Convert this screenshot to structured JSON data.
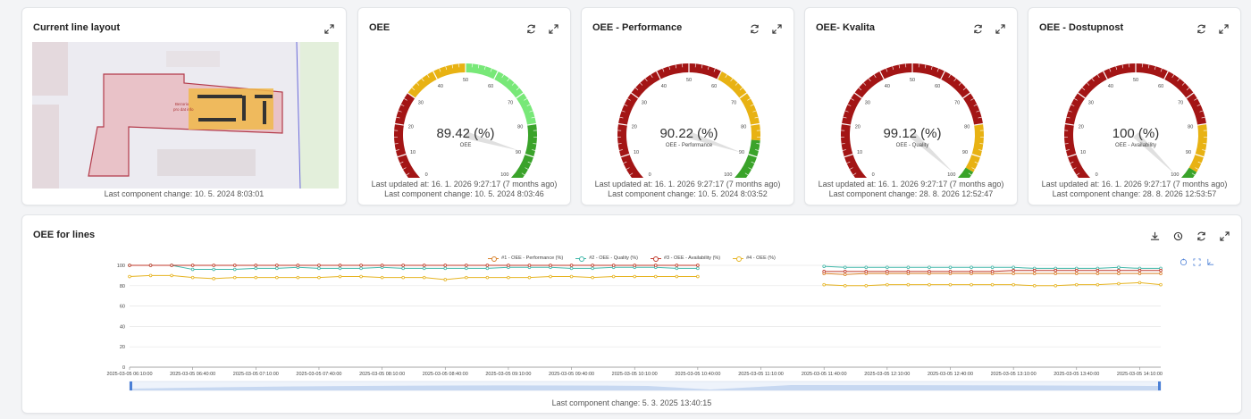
{
  "layout_card": {
    "title": "Current line layout",
    "footer": "Last component change: 10. 5. 2024 8:03:01",
    "map_label_line1": "Bezorio",
    "map_label_line2": "pro dat info",
    "icons": [
      "expand-icon"
    ]
  },
  "gauges": [
    {
      "title": "OEE",
      "value": 89.42,
      "value_text": "89.42 (%)",
      "name": "OEE",
      "updated": "Last updated at: 16. 1. 2026 9:27:17 (7 months ago)",
      "component_change": "Last component change: 10. 5. 2024 8:03:46",
      "bands": [
        {
          "to": 30,
          "color": "#a31515"
        },
        {
          "to": 50,
          "color": "#e8b213"
        },
        {
          "to": 80,
          "color": "#78e878"
        },
        {
          "to": 100,
          "color": "#3aa32a"
        }
      ]
    },
    {
      "title": "OEE - Performance",
      "value": 90.22,
      "value_text": "90.22 (%)",
      "name": "OEE - Performance",
      "updated": "Last updated at: 16. 1. 2026 9:27:17 (7 months ago)",
      "component_change": "Last component change: 10. 5. 2024 8:03:52",
      "bands": [
        {
          "to": 60,
          "color": "#a31515"
        },
        {
          "to": 85,
          "color": "#e8b213"
        },
        {
          "to": 100,
          "color": "#3aa32a"
        }
      ]
    },
    {
      "title": "OEE- Kvalita",
      "value": 99.12,
      "value_text": "99.12 (%)",
      "name": "OEE - Quality",
      "updated": "Last updated at: 16. 1. 2026 9:27:17 (7 months ago)",
      "component_change": "Last component change: 28. 8. 2026 12:52:47",
      "bands": [
        {
          "to": 80,
          "color": "#a31515"
        },
        {
          "to": 95,
          "color": "#e8b213"
        },
        {
          "to": 100,
          "color": "#3aa32a"
        }
      ]
    },
    {
      "title": "OEE - Dostupnost",
      "value": 100,
      "value_text": "100 (%)",
      "name": "OEE - Availability",
      "updated": "Last updated at: 16. 1. 2026 9:27:17 (7 months ago)",
      "component_change": "Last component change: 28. 8. 2026 12:53:57",
      "bands": [
        {
          "to": 80,
          "color": "#a31515"
        },
        {
          "to": 95,
          "color": "#e8b213"
        },
        {
          "to": 100,
          "color": "#3aa32a"
        }
      ]
    }
  ],
  "gauge_ticks": [
    "0",
    "10",
    "20",
    "30",
    "40",
    "50",
    "60",
    "70",
    "80",
    "90",
    "100"
  ],
  "gauge_icons": [
    "refresh-icon",
    "expand-icon"
  ],
  "lines_card": {
    "title": "OEE for lines",
    "footer": "Last component change: 5. 3. 2025 13:40:15",
    "icons": [
      "download-icon",
      "history-icon",
      "refresh-icon",
      "expand-icon"
    ],
    "chart_icons": [
      "restore-icon",
      "zoom-icon",
      "zoom-back-icon"
    ]
  },
  "chart_data": {
    "type": "line",
    "ylim": [
      0,
      100
    ],
    "yticks": [
      0,
      20,
      40,
      60,
      80,
      100
    ],
    "grid": true,
    "legend_position": "top-center",
    "x": [
      "2025-03-05 06:10:00",
      "2025-03-05 06:20:00",
      "2025-03-05 06:30:00",
      "2025-03-05 06:40:00",
      "2025-03-05 06:50:00",
      "2025-03-05 07:00:00",
      "2025-03-05 07:10:00",
      "2025-03-05 07:20:00",
      "2025-03-05 07:30:00",
      "2025-03-05 07:40:00",
      "2025-03-05 07:50:00",
      "2025-03-05 08:00:00",
      "2025-03-05 08:10:00",
      "2025-03-05 08:20:00",
      "2025-03-05 08:30:00",
      "2025-03-05 08:40:00",
      "2025-03-05 08:50:00",
      "2025-03-05 09:00:00",
      "2025-03-05 09:10:00",
      "2025-03-05 09:20:00",
      "2025-03-05 09:30:00",
      "2025-03-05 09:40:00",
      "2025-03-05 09:50:00",
      "2025-03-05 10:00:00",
      "2025-03-05 10:10:00",
      "2025-03-05 10:20:00",
      "2025-03-05 10:30:00",
      "2025-03-05 10:40:00",
      "2025-03-05 10:50:00",
      "2025-03-05 11:00:00",
      "2025-03-05 11:10:00",
      "2025-03-05 11:20:00",
      "2025-03-05 11:30:00",
      "2025-03-05 11:40:00",
      "2025-03-05 11:50:00",
      "2025-03-05 12:00:00",
      "2025-03-05 12:10:00",
      "2025-03-05 12:20:00",
      "2025-03-05 12:30:00",
      "2025-03-05 12:40:00",
      "2025-03-05 12:50:00",
      "2025-03-05 13:00:00",
      "2025-03-05 13:10:00",
      "2025-03-05 13:20:00",
      "2025-03-05 13:30:00",
      "2025-03-05 13:40:00",
      "2025-03-05 13:50:00",
      "2025-03-05 14:00:00",
      "2025-03-05 14:10:00",
      "2025-03-05 14:20:00"
    ],
    "xticks": [
      "2025-03-05 06:10:00",
      "2025-03-05 06:40:00",
      "2025-03-05 07:10:00",
      "2025-03-05 07:40:00",
      "2025-03-05 08:10:00",
      "2025-03-05 08:40:00",
      "2025-03-05 09:10:00",
      "2025-03-05 09:40:00",
      "2025-03-05 10:10:00",
      "2025-03-05 10:40:00",
      "2025-03-05 11:10:00",
      "2025-03-05 11:40:00",
      "2025-03-05 12:10:00",
      "2025-03-05 12:40:00",
      "2025-03-05 13:10:00",
      "2025-03-05 13:40:00",
      "2025-03-05 14:10:00"
    ],
    "series": [
      {
        "name": "#1 - OEE - Performance (%)",
        "color": "#d9822b",
        "values": [
          100,
          100,
          100,
          100,
          100,
          100,
          100,
          100,
          100,
          100,
          100,
          100,
          100,
          100,
          100,
          100,
          100,
          100,
          100,
          100,
          100,
          100,
          100,
          100,
          100,
          100,
          100,
          100,
          null,
          null,
          null,
          null,
          null,
          92,
          91,
          92,
          92,
          92,
          92,
          92,
          92,
          92,
          92,
          92,
          92,
          92,
          92,
          92,
          92,
          92
        ]
      },
      {
        "name": "#2 - OEE - Quality (%)",
        "color": "#3fb6a8",
        "values": [
          100,
          100,
          100,
          96,
          96,
          96,
          97,
          97,
          98,
          97,
          97,
          97,
          98,
          97,
          97,
          97,
          97,
          97,
          98,
          98,
          98,
          97,
          97,
          98,
          98,
          98,
          97,
          97,
          null,
          null,
          null,
          null,
          null,
          99,
          98,
          98,
          98,
          98,
          98,
          98,
          98,
          98,
          98,
          97,
          97,
          97,
          97,
          98,
          97,
          97
        ]
      },
      {
        "name": "#3 - OEE - Availability (%)",
        "color": "#c0392b",
        "values": [
          100,
          100,
          100,
          100,
          100,
          100,
          100,
          100,
          100,
          100,
          100,
          100,
          100,
          100,
          100,
          100,
          100,
          100,
          100,
          100,
          100,
          100,
          100,
          100,
          100,
          100,
          100,
          100,
          null,
          null,
          null,
          null,
          null,
          94,
          94,
          94,
          94,
          94,
          94,
          94,
          94,
          94,
          95,
          95,
          95,
          95,
          95,
          95,
          95,
          95
        ]
      },
      {
        "name": "#4 - OEE (%)",
        "color": "#e6b422",
        "values": [
          89,
          90,
          90,
          88,
          87,
          88,
          88,
          88,
          88,
          88,
          89,
          89,
          88,
          88,
          88,
          86,
          88,
          88,
          88,
          88,
          89,
          89,
          88,
          89,
          89,
          89,
          89,
          89,
          null,
          null,
          null,
          null,
          null,
          81,
          80,
          80,
          81,
          81,
          81,
          81,
          81,
          81,
          81,
          80,
          80,
          81,
          81,
          82,
          83,
          81
        ]
      }
    ]
  }
}
